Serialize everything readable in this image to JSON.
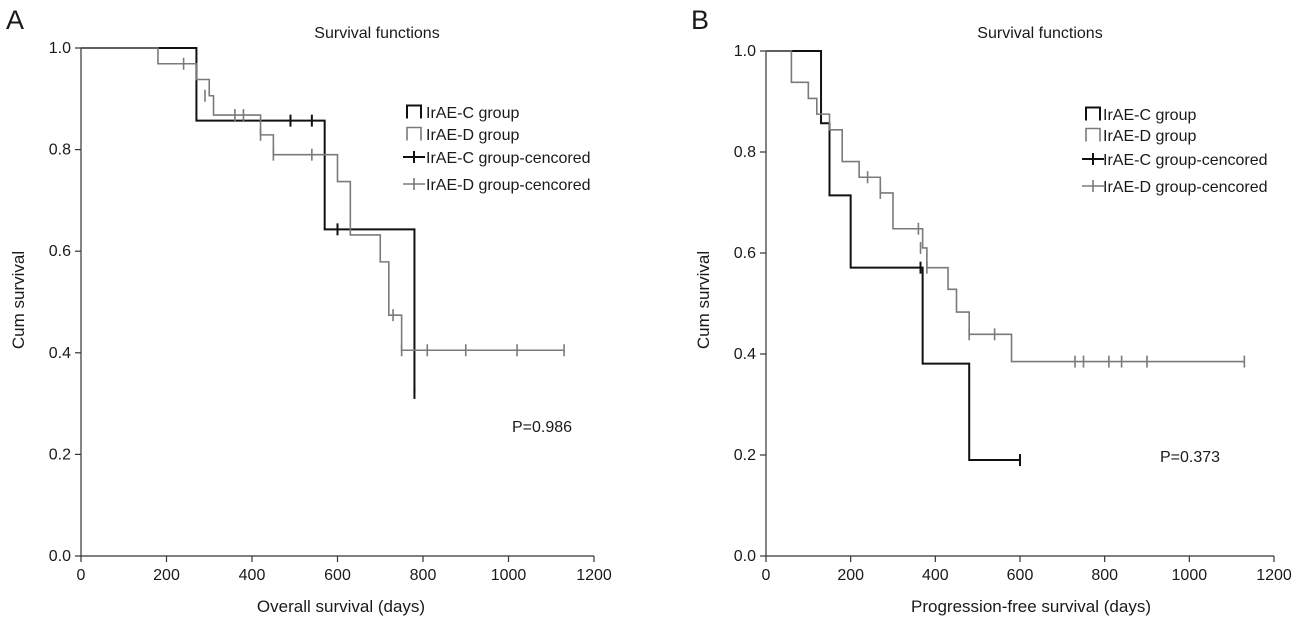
{
  "colors": {
    "c_group": "#111111",
    "d_group": "#7a7a7a",
    "axis": "#333333"
  },
  "chart_data": [
    {
      "type": "line",
      "panel": "A",
      "title": "Survival functions",
      "xlabel": "Overall survival (days)",
      "ylabel": "Cum survival",
      "xlim": [
        0,
        1200
      ],
      "ylim": [
        0,
        1.0
      ],
      "xticks": [
        0,
        200,
        400,
        600,
        800,
        1000,
        1200
      ],
      "xtick_labels": [
        "0",
        "200",
        "400",
        "600",
        "800",
        "1000",
        "1200"
      ],
      "yticks": [
        0,
        0.2,
        0.4,
        0.6,
        0.8,
        1.0
      ],
      "ytick_labels": [
        "0.0",
        "0.2",
        "0.4",
        "0.6",
        "0.8",
        "1.0"
      ],
      "grid": false,
      "legend_position": "top-right",
      "legend": [
        "IrAE-C group",
        "IrAE-D group",
        "IrAE-C group-cencored",
        "IrAE-D group-cencored"
      ],
      "annotation": "P=0.986",
      "series": [
        {
          "name": "IrAE-C group",
          "color": "#111111",
          "steps": [
            [
              0,
              1.0
            ],
            [
              270,
              0.857
            ],
            [
              570,
              0.643
            ],
            [
              780,
              0.321
            ]
          ],
          "end_x": 780,
          "censored": [
            [
              490,
              0.857
            ],
            [
              540,
              0.857
            ],
            [
              600,
              0.643
            ],
            [
              780,
              0.321
            ]
          ]
        },
        {
          "name": "IrAE-D group",
          "color": "#7a7a7a",
          "steps": [
            [
              0,
              1.0
            ],
            [
              180,
              0.969
            ],
            [
              270,
              0.938
            ],
            [
              300,
              0.906
            ],
            [
              310,
              0.868
            ],
            [
              420,
              0.829
            ],
            [
              450,
              0.79
            ],
            [
              600,
              0.737
            ],
            [
              630,
              0.632
            ],
            [
              700,
              0.579
            ],
            [
              720,
              0.474
            ],
            [
              750,
              0.405
            ]
          ],
          "end_x": 1130,
          "censored": [
            [
              240,
              0.969
            ],
            [
              290,
              0.906
            ],
            [
              360,
              0.868
            ],
            [
              380,
              0.868
            ],
            [
              420,
              0.829
            ],
            [
              450,
              0.79
            ],
            [
              540,
              0.79
            ],
            [
              730,
              0.474
            ],
            [
              750,
              0.405
            ],
            [
              810,
              0.405
            ],
            [
              900,
              0.405
            ],
            [
              1020,
              0.405
            ],
            [
              1130,
              0.405
            ]
          ]
        }
      ]
    },
    {
      "type": "line",
      "panel": "B",
      "title": "Survival functions",
      "xlabel": "Progression-free survival (days)",
      "ylabel": "Cum survival",
      "xlim": [
        0,
        1200
      ],
      "ylim": [
        0,
        1.0
      ],
      "xticks": [
        0,
        200,
        400,
        600,
        800,
        1000,
        1200
      ],
      "xtick_labels": [
        "0",
        "200",
        "400",
        "600",
        "800",
        "1000",
        "1200"
      ],
      "yticks": [
        0,
        0.2,
        0.4,
        0.6,
        0.8,
        1.0
      ],
      "ytick_labels": [
        "0.0",
        "0.2",
        "0.4",
        "0.6",
        "0.8",
        "1.0"
      ],
      "grid": false,
      "legend_position": "top-right",
      "legend": [
        "IrAE-C group",
        "IrAE-D group",
        "IrAE-C group-cencored",
        "IrAE-D group-cencored"
      ],
      "annotation": "P=0.373",
      "series": [
        {
          "name": "IrAE-C group",
          "color": "#111111",
          "steps": [
            [
              0,
              1.0
            ],
            [
              130,
              0.857
            ],
            [
              150,
              0.714
            ],
            [
              200,
              0.571
            ],
            [
              370,
              0.381
            ],
            [
              480,
              0.19
            ]
          ],
          "end_x": 600,
          "censored": [
            [
              365,
              0.571
            ],
            [
              600,
              0.19
            ]
          ]
        },
        {
          "name": "IrAE-D group",
          "color": "#7a7a7a",
          "steps": [
            [
              0,
              1.0
            ],
            [
              60,
              0.938
            ],
            [
              100,
              0.906
            ],
            [
              120,
              0.875
            ],
            [
              150,
              0.844
            ],
            [
              180,
              0.781
            ],
            [
              220,
              0.75
            ],
            [
              270,
              0.719
            ],
            [
              300,
              0.648
            ],
            [
              370,
              0.61
            ],
            [
              380,
              0.571
            ],
            [
              430,
              0.528
            ],
            [
              450,
              0.483
            ],
            [
              480,
              0.439
            ],
            [
              580,
              0.385
            ]
          ],
          "end_x": 1130,
          "censored": [
            [
              240,
              0.75
            ],
            [
              270,
              0.719
            ],
            [
              360,
              0.648
            ],
            [
              365,
              0.61
            ],
            [
              380,
              0.571
            ],
            [
              480,
              0.439
            ],
            [
              540,
              0.439
            ],
            [
              730,
              0.385
            ],
            [
              750,
              0.385
            ],
            [
              810,
              0.385
            ],
            [
              840,
              0.385
            ],
            [
              900,
              0.385
            ],
            [
              1130,
              0.385
            ]
          ]
        }
      ]
    }
  ]
}
